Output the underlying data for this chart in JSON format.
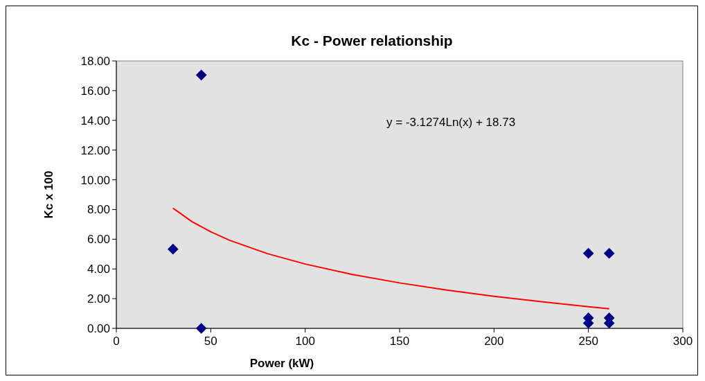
{
  "chart_data": {
    "type": "scatter",
    "title": "Kc - Power relationship",
    "xlabel": "Power (kW)",
    "ylabel": "Kc x 100",
    "xlim": [
      0,
      300
    ],
    "xticks": [
      0,
      50,
      100,
      150,
      200,
      250,
      300
    ],
    "ylim": [
      0,
      18
    ],
    "yticks": [
      {
        "value": 0,
        "label": "0.00"
      },
      {
        "value": 2,
        "label": "2.00"
      },
      {
        "value": 4,
        "label": "4.00"
      },
      {
        "value": 6,
        "label": "6.00"
      },
      {
        "value": 8,
        "label": "8.00"
      },
      {
        "value": 10,
        "label": "10.00"
      },
      {
        "value": 12,
        "label": "12.00"
      },
      {
        "value": 14,
        "label": "14.00"
      },
      {
        "value": 16,
        "label": "16.00"
      },
      {
        "value": 18,
        "label": "18.00"
      }
    ],
    "grid": false,
    "annotations": [
      "y = -3.1274Ln(x) + 18.73"
    ],
    "series": [
      {
        "color": "#000080",
        "marker": "diamond",
        "x": [
          30,
          45,
          45,
          250,
          250,
          250,
          261,
          261,
          261
        ],
        "values": [
          5.33,
          17.05,
          0.0,
          5.05,
          0.7,
          0.35,
          5.05,
          0.7,
          0.35
        ]
      },
      {
        "type": "line",
        "color": "#ff0000",
        "marker": "none",
        "line_style": "solid",
        "x": [
          30,
          40,
          50,
          60,
          80,
          100,
          125,
          150,
          175,
          200,
          225,
          250,
          261
        ],
        "values": [
          8.09,
          7.19,
          6.5,
          5.93,
          5.03,
          4.33,
          3.63,
          3.06,
          2.58,
          2.16,
          1.79,
          1.46,
          1.32
        ]
      }
    ]
  }
}
